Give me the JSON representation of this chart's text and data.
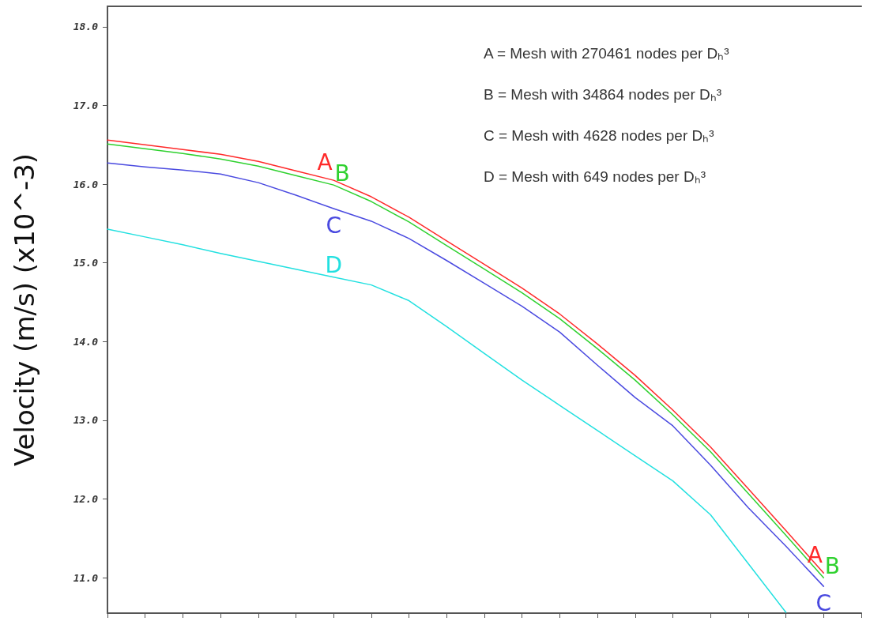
{
  "chart_data": {
    "type": "line",
    "ylabel": "Velocity (m/s) (x10^-3)",
    "categories": [
      null,
      null,
      null,
      null,
      null,
      null,
      null,
      null,
      null,
      null,
      null,
      null,
      null,
      null,
      null,
      null,
      null,
      null,
      null,
      null,
      null
    ],
    "series": [
      {
        "name": "A",
        "color": "#ff2a2a",
        "values": [
          16.56,
          16.5,
          16.44,
          16.38,
          16.29,
          16.17,
          16.05,
          15.84,
          15.58,
          15.28,
          14.98,
          14.68,
          14.35,
          13.97,
          13.57,
          13.13,
          12.66,
          12.13,
          11.6,
          11.06,
          null
        ]
      },
      {
        "name": "B",
        "color": "#2fd12f",
        "values": [
          16.51,
          16.45,
          16.39,
          16.32,
          16.23,
          16.11,
          15.99,
          15.78,
          15.52,
          15.22,
          14.92,
          14.62,
          14.29,
          13.91,
          13.51,
          13.07,
          12.6,
          12.07,
          11.54,
          11.0,
          null
        ]
      },
      {
        "name": "C",
        "color": "#4a4ae0",
        "values": [
          16.27,
          16.22,
          16.18,
          16.13,
          16.02,
          15.86,
          15.69,
          15.53,
          15.31,
          15.03,
          14.74,
          14.45,
          14.12,
          13.7,
          13.29,
          12.93,
          12.43,
          11.89,
          11.4,
          10.89,
          null
        ]
      },
      {
        "name": "D",
        "color": "#22e0e0",
        "values": [
          15.43,
          15.33,
          15.23,
          15.12,
          15.02,
          14.92,
          14.82,
          14.72,
          14.52,
          14.19,
          13.85,
          13.51,
          13.19,
          12.87,
          12.55,
          12.23,
          11.8,
          11.18,
          10.56,
          null,
          null
        ]
      }
    ],
    "ylim": [
      10.55,
      18.26
    ],
    "yticks": [
      {
        "value": 11,
        "label": "11.0"
      },
      {
        "value": 12,
        "label": "12.0"
      },
      {
        "value": 13,
        "label": "13.0"
      },
      {
        "value": 14,
        "label": "14.0"
      },
      {
        "value": 15,
        "label": "15.0"
      },
      {
        "value": 16,
        "label": "16.0"
      },
      {
        "value": 17,
        "label": "17.0"
      },
      {
        "value": 18,
        "label": "18.0"
      }
    ],
    "tick_labels": "y",
    "grid": false,
    "legend": false,
    "marker": "none",
    "line_style": "solid",
    "annotations": [
      "A = Mesh with 270461 nodes per Dₕ³",
      "B = Mesh with 34864 nodes per Dₕ³",
      "C = Mesh with 4628 nodes per Dₕ³",
      "D = Mesh with 649 nodes per Dₕ³"
    ]
  }
}
